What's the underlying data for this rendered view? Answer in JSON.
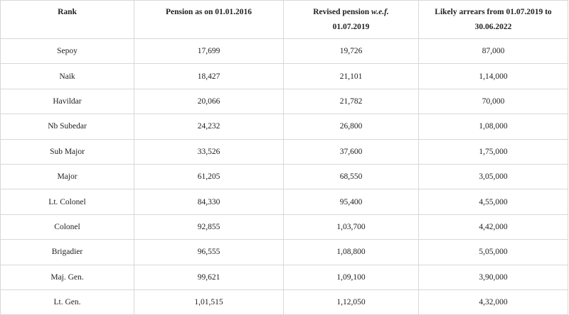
{
  "table": {
    "header": [
      [
        "Rank"
      ],
      [
        "Pension as on 01.01.2016"
      ],
      [
        "Revised pension",
        "w.e.f.",
        "01.07.2019"
      ],
      [
        "Likely arrears from 01.07.2019 to 30.06.2022"
      ]
    ],
    "rows": [
      [
        "Sepoy",
        "17,699",
        "19,726",
        "87,000"
      ],
      [
        "Naik",
        "18,427",
        "21,101",
        "1,14,000"
      ],
      [
        "Havildar",
        "20,066",
        "21,782",
        "70,000"
      ],
      [
        "Nb Subedar",
        "24,232",
        "26,800",
        "1,08,000"
      ],
      [
        "Sub Major",
        "33,526",
        "37,600",
        "1,75,000"
      ],
      [
        "Major",
        "61,205",
        "68,550",
        "3,05,000"
      ],
      [
        "Lt. Colonel",
        "84,330",
        "95,400",
        "4,55,000"
      ],
      [
        "Colonel",
        "92,855",
        "1,03,700",
        "4,42,000"
      ],
      [
        "Brigadier",
        "96,555",
        "1,08,800",
        "5,05,000"
      ],
      [
        "Maj. Gen.",
        "99,621",
        "1,09,100",
        "3,90,000"
      ],
      [
        "Lt. Gen.",
        "1,01,515",
        "1,12,050",
        "4,32,000"
      ]
    ]
  }
}
